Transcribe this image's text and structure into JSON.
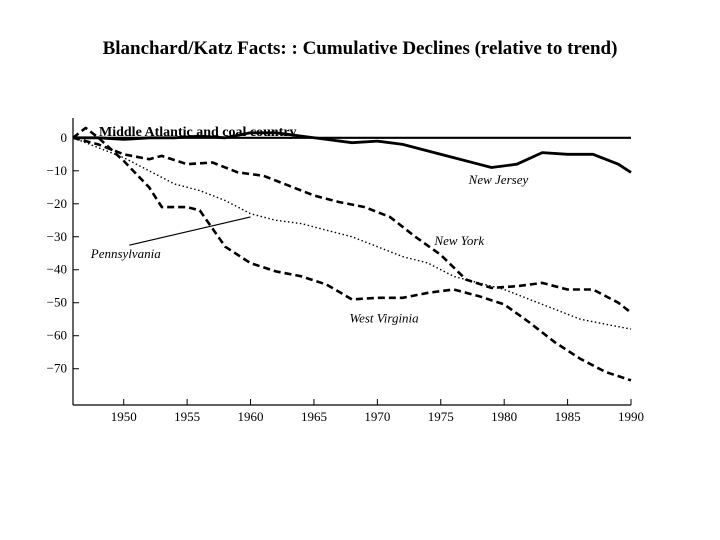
{
  "slide": {
    "title": "Blanchard/Katz Facts: : Cumulative Declines (relative to trend)"
  },
  "chart_data": {
    "type": "line",
    "title": "Middle Atlantic and coal country",
    "xlabel": "",
    "ylabel": "",
    "xlim": [
      1946,
      1990
    ],
    "ylim": [
      -81,
      6
    ],
    "x_ticks": [
      1950,
      1955,
      1960,
      1965,
      1970,
      1975,
      1980,
      1985,
      1990
    ],
    "y_ticks": [
      0,
      -10,
      -20,
      -30,
      -40,
      -50,
      -60,
      -70
    ],
    "y_tick_labels": [
      "0",
      "−10",
      "−20",
      "−30",
      "−40",
      "−50",
      "−60",
      "−70"
    ],
    "zero_line": true,
    "grid": false,
    "series": [
      {
        "name": "New Jersey",
        "style": "solid",
        "x": [
          1946,
          1948,
          1950,
          1952,
          1954,
          1956,
          1958,
          1960,
          1962,
          1964,
          1966,
          1968,
          1970,
          1972,
          1974,
          1976,
          1978,
          1979,
          1981,
          1983,
          1985,
          1987,
          1989,
          1990
        ],
        "y": [
          0,
          0,
          -0.5,
          0,
          0,
          0.5,
          0,
          1.5,
          1.5,
          0.5,
          -0.5,
          -1.5,
          -1,
          -2,
          -4,
          -6,
          -8,
          -9,
          -8,
          -4.5,
          -5,
          -5,
          -8,
          -10.5
        ]
      },
      {
        "name": "New York",
        "style": "dashed",
        "x": [
          1946,
          1948,
          1950,
          1952,
          1953,
          1955,
          1957,
          1959,
          1961,
          1963,
          1965,
          1967,
          1969,
          1971,
          1973,
          1975,
          1977,
          1979,
          1981,
          1983,
          1985,
          1987,
          1989,
          1990
        ],
        "y": [
          0,
          -2,
          -5,
          -6.5,
          -5.5,
          -8,
          -7.5,
          -10.5,
          -11.5,
          -14.5,
          -17.5,
          -19.5,
          -21,
          -24,
          -30,
          -35.5,
          -43,
          -45.5,
          -45,
          -44,
          -46,
          -46,
          -50,
          -53
        ]
      },
      {
        "name": "Pennsylvania",
        "style": "dotted",
        "x": [
          1946,
          1948,
          1950,
          1952,
          1954,
          1956,
          1958,
          1960,
          1962,
          1964,
          1966,
          1968,
          1970,
          1972,
          1974,
          1976,
          1978,
          1980,
          1982,
          1984,
          1986,
          1988,
          1990
        ],
        "y": [
          0,
          -3,
          -6,
          -10,
          -14,
          -16,
          -19,
          -23,
          -25,
          -26,
          -28,
          -30,
          -33,
          -36,
          -38,
          -42,
          -44,
          -46,
          -49,
          -52,
          -55,
          -56.5,
          -58
        ]
      },
      {
        "name": "West Virginia",
        "style": "dashed",
        "x": [
          1946,
          1947,
          1948,
          1950,
          1952,
          1953,
          1955,
          1956,
          1958,
          1960,
          1962,
          1964,
          1966,
          1968,
          1970,
          1972,
          1974,
          1976,
          1978,
          1980,
          1982,
          1984,
          1986,
          1988,
          1990
        ],
        "y": [
          0,
          3,
          0,
          -7,
          -15,
          -21,
          -21,
          -22,
          -33,
          -38,
          -40.5,
          -42,
          -44.5,
          -49,
          -48.5,
          -48.5,
          -47,
          -46,
          -48,
          -50.5,
          -56,
          -62,
          -67,
          -71,
          -73.5
        ]
      }
    ],
    "annotations": [
      {
        "text": "New Jersey",
        "series": "New Jersey",
        "x": 1977.2,
        "y": -14
      },
      {
        "text": "New York",
        "series": "New York",
        "x": 1974.5,
        "y": -32.5
      },
      {
        "text": "Pennsylvania",
        "series": "Pennsylvania",
        "x": 1947.4,
        "y": -36.5,
        "arrow_to": {
          "x": 1960,
          "y": -24
        }
      },
      {
        "text": "West Virginia",
        "series": "West Virginia",
        "x": 1967.8,
        "y": -56
      }
    ]
  }
}
